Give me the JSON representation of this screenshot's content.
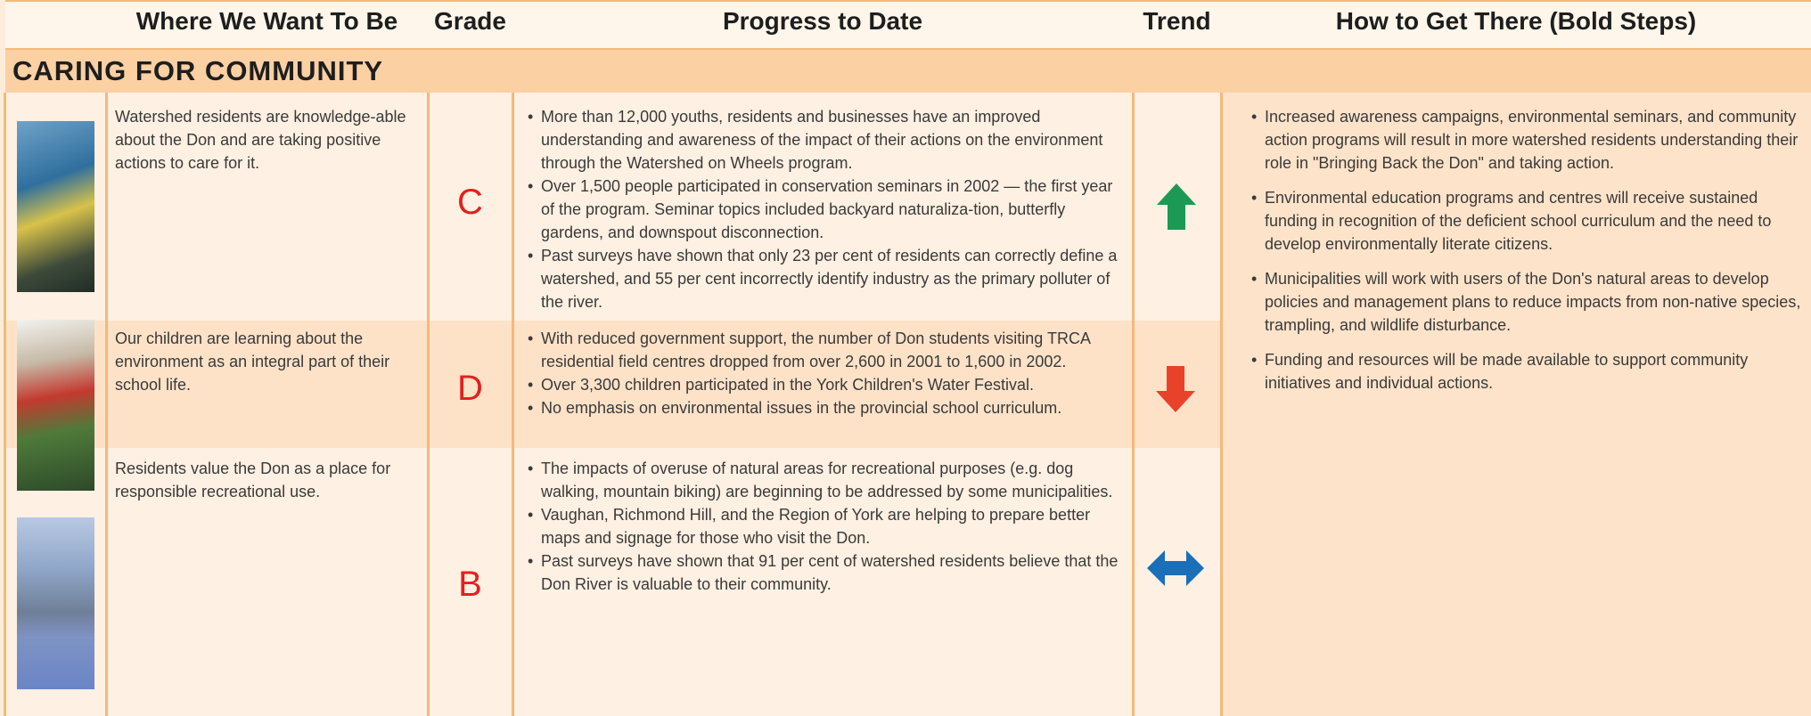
{
  "header": {
    "columns": [
      "Where We Want To Be",
      "Grade",
      "Progress to Date",
      "Trend",
      "How to Get There (Bold Steps)"
    ]
  },
  "section": {
    "title": "CARING FOR COMMUNITY"
  },
  "rows": [
    {
      "want": "Watershed residents are knowledge-able about the Don and are taking positive actions to care for it.",
      "grade": "C",
      "progress": [
        "More than 12,000 youths, residents and businesses have an improved understanding and awareness of the impact of their actions on the environment through the Watershed on Wheels program.",
        "Over 1,500 people participated in conservation seminars in 2002 — the first year of the program. Seminar topics included backyard naturaliza-tion, butterfly gardens, and downspout disconnection.",
        "Past surveys have shown that only 23 per cent of residents can correctly define a watershed, and 55 per cent incorrectly identify industry as the primary polluter of the river."
      ]
    },
    {
      "want": "Our children are learning about the environment as an integral part of their school life.",
      "grade": "D",
      "progress": [
        "With reduced government support, the number of Don students visiting TRCA residential field centres dropped from over 2,600 in 2001 to 1,600 in 2002.",
        "Over 3,300 children participated in the York Children's Water Festival.",
        "No emphasis on environmental issues in the provincial school curriculum."
      ]
    },
    {
      "want": "Residents value the Don as a place for responsible recreational use.",
      "grade": "B",
      "progress": [
        "The impacts of overuse of natural areas for recreational purposes (e.g. dog walking, mountain biking) are beginning to be addressed by some municipalities.",
        "Vaughan, Richmond Hill, and the Region of York are helping to prepare better maps and signage for those who visit the Don.",
        "Past surveys have shown that 91 per cent of watershed residents believe that the Don River is valuable to their community."
      ]
    }
  ],
  "how_steps": [
    "Increased awareness campaigns, environmental seminars, and community action programs will result in more watershed residents understanding their role in \"Bringing Back the Don\" and taking action.",
    "Environmental education programs and centres will receive sustained funding in recognition of the deficient school curriculum and the need to develop environmentally literate citizens.",
    "Municipalities will work with users of the Don's natural areas to develop policies and management plans to reduce impacts from non-native species, trampling, and wildlife disturbance.",
    "Funding and resources will be made available to support community initiatives and individual actions."
  ]
}
